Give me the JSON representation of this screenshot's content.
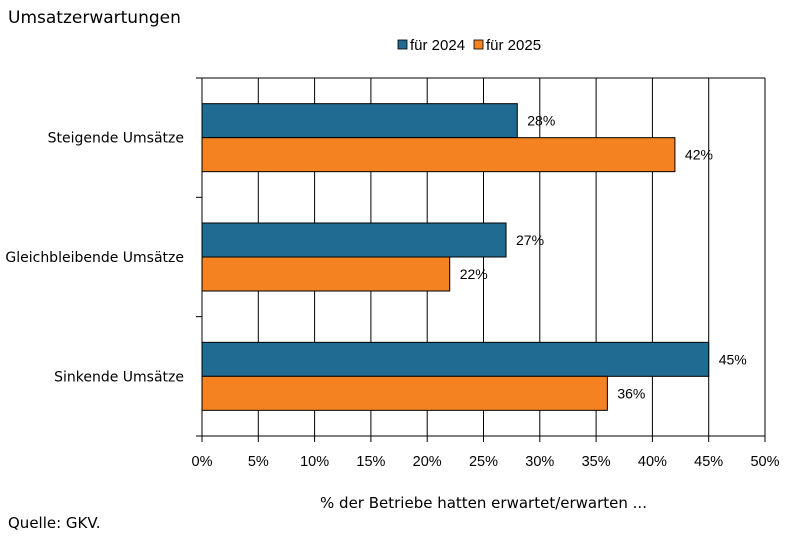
{
  "chart_data": {
    "type": "bar",
    "orientation": "horizontal",
    "title": "Umsatzerwartungen",
    "categories": [
      "Steigende Umsätze",
      "Gleichbleibende Umsätze",
      "Sinkende Umsätze"
    ],
    "series": [
      {
        "name": "für 2024",
        "color": "#1f6b92",
        "values": [
          28,
          27,
          45
        ],
        "labels": [
          "28%",
          "27%",
          "45%"
        ]
      },
      {
        "name": "für 2025",
        "color": "#f58220",
        "values": [
          42,
          22,
          36
        ],
        "labels": [
          "42%",
          "22%",
          "36%"
        ]
      }
    ],
    "xlim": [
      0,
      50
    ],
    "xticks": [
      0,
      5,
      10,
      15,
      20,
      25,
      30,
      35,
      40,
      45,
      50
    ],
    "xtick_labels": [
      "0%",
      "5%",
      "10%",
      "15%",
      "20%",
      "25%",
      "30%",
      "35%",
      "40%",
      "45%",
      "50%"
    ],
    "xlabel": "% der Betriebe hatten erwartet/erwarten ...",
    "ylabel": "",
    "grid": true,
    "legend_position": "top"
  },
  "footer": {
    "source": "Quelle: GKV."
  }
}
